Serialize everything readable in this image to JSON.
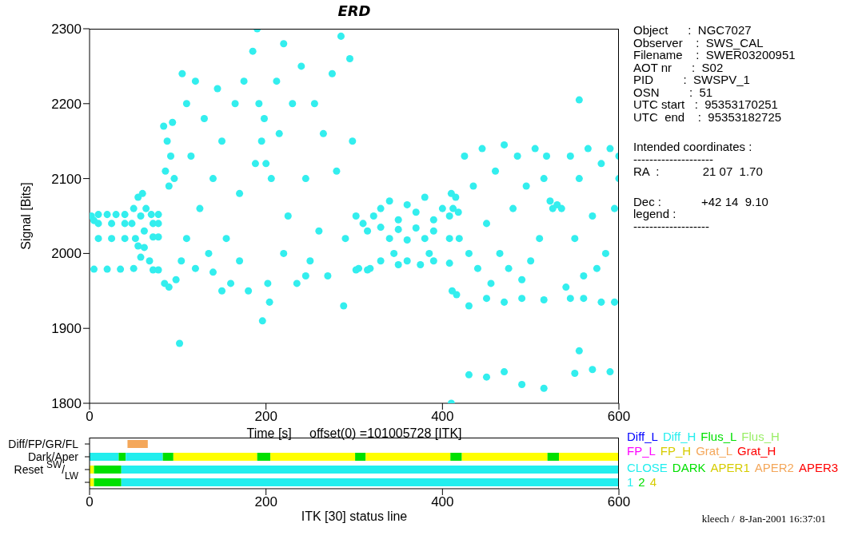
{
  "chart_data": [
    {
      "type": "scatter",
      "title": "ERD",
      "xlabel": "Time [s]     offset(0) =101005728 [ITK]",
      "ylabel": "Signal [Bits]",
      "xlim": [
        0,
        600
      ],
      "xticks": [
        0,
        200,
        400,
        600
      ],
      "ylim": [
        1800,
        2300
      ],
      "yticks": [
        1800,
        1900,
        2000,
        2100,
        2200,
        2300
      ],
      "marker": "circle",
      "grid": false,
      "annotations": [
        "Object      :  NGC7027",
        "Observer    :  SWS_CAL",
        "Filename    :  SWER03200951",
        "AOT nr      :  S02",
        "PID         :  SWSPV_1",
        "OSN         :  51",
        "UTC start   :  95353170251",
        "UTC  end    :  95353182725",
        "Intended coordinates :",
        "--------------------",
        "RA  :             21 07  1.70",
        "Dec :            +42 14  9.10",
        "legend :",
        "-------------------"
      ],
      "series": [
        {
          "color": "#33eeee",
          "x": [
            2,
            5,
            10,
            20,
            30,
            40,
            10,
            25,
            40,
            10,
            25,
            40,
            5,
            20,
            35,
            48,
            50,
            52,
            55,
            55,
            58,
            60,
            62,
            64,
            50,
            58,
            62,
            68,
            70,
            78,
            72,
            78,
            72,
            78,
            72,
            78,
            84,
            86,
            88,
            90,
            92,
            94,
            96,
            85,
            90,
            98,
            102,
            104,
            105,
            110,
            115,
            120,
            125,
            130,
            135,
            140,
            145,
            150,
            155,
            160,
            165,
            170,
            175,
            180,
            185,
            188,
            120,
            150,
            170,
            110,
            140,
            190,
            192,
            195,
            198,
            200,
            202,
            204,
            196,
            206,
            212,
            215,
            220,
            225,
            230,
            235,
            240,
            245,
            250,
            255,
            260,
            265,
            270,
            275,
            280,
            285,
            290,
            295,
            298,
            288,
            245,
            220,
            302,
            305,
            310,
            315,
            318,
            322,
            330,
            340,
            350,
            360,
            370,
            380,
            390,
            400,
            408,
            330,
            350,
            370,
            390,
            408,
            340,
            360,
            380,
            330,
            350,
            360,
            375,
            390,
            408,
            302,
            315,
            345,
            385,
            410,
            412,
            415,
            418,
            411,
            416,
            419,
            410,
            425,
            430,
            435,
            440,
            445,
            450,
            455,
            460,
            465,
            470,
            475,
            480,
            485,
            490,
            495,
            500,
            505,
            510,
            515,
            518,
            430,
            450,
            470,
            490,
            515,
            430,
            450,
            470,
            490,
            515,
            522,
            525,
            530,
            535,
            545,
            550,
            555,
            560,
            565,
            570,
            575,
            580,
            585,
            590,
            595,
            600,
            540,
            545,
            560,
            580,
            595,
            550,
            570,
            590,
            555,
            555,
            600
          ],
          "values": [
            2050,
            2044,
            2052,
            2052,
            2052,
            2052,
            2040,
            2040,
            2040,
            2020,
            2020,
            2020,
            1979,
            1979,
            1979,
            2040,
            2060,
            2020,
            2075,
            2010,
            2050,
            2080,
            2030,
            2060,
            1980,
            1995,
            2008,
            1990,
            2052,
            2052,
            2040,
            2040,
            2022,
            2022,
            1978,
            1978,
            2170,
            2110,
            2150,
            2090,
            2130,
            2175,
            2100,
            1960,
            1955,
            1965,
            1880,
            1990,
            2240,
            2200,
            2130,
            2230,
            2060,
            2180,
            2000,
            2100,
            2220,
            2150,
            2020,
            1960,
            2200,
            2080,
            2230,
            1950,
            2270,
            2120,
            1980,
            1950,
            1990,
            2020,
            1975,
            2300,
            2200,
            2150,
            2180,
            2120,
            1960,
            1935,
            1910,
            2100,
            2230,
            2160,
            2280,
            2050,
            2200,
            1960,
            2250,
            2100,
            1990,
            2200,
            2030,
            2160,
            1970,
            2240,
            2110,
            2290,
            2020,
            2260,
            2150,
            1930,
            1970,
            2000,
            2050,
            1980,
            2040,
            2030,
            1980,
            2050,
            2060,
            2070,
            2045,
            2065,
            2055,
            2075,
            2045,
            2060,
            2050,
            2035,
            2032,
            2034,
            2030,
            2020,
            2020,
            2018,
            2020,
            1990,
            1985,
            1990,
            1985,
            1990,
            1987,
            1978,
            1978,
            2000,
            2000,
            2080,
            2060,
            2075,
            2055,
            1950,
            1945,
            2020,
            1800,
            2130,
            2000,
            2090,
            1980,
            2140,
            2040,
            1960,
            2110,
            2000,
            2145,
            1980,
            2060,
            2130,
            1965,
            2090,
            1990,
            2140,
            2020,
            2100,
            2130,
            1930,
            1940,
            1935,
            1940,
            1938,
            1838,
            1835,
            1842,
            1825,
            1820,
            2070,
            2060,
            2065,
            2060,
            2130,
            2020,
            2100,
            1970,
            2140,
            2050,
            1980,
            2120,
            2000,
            2140,
            2060,
            2100,
            1955,
            1940,
            1940,
            1935,
            1935,
            1840,
            1845,
            1842,
            2205,
            1870,
            2130
          ]
        }
      ]
    },
    {
      "type": "bar",
      "orientation": "horizontal",
      "xlabel": "ITK [30] status line",
      "xlim": [
        0,
        600
      ],
      "xticks": [
        0,
        200,
        400,
        600
      ],
      "categories": [
        "Diff/FP/GR/FL",
        "Dark/Aper",
        "Reset $^{SW}$/$_{LW}$",
        null
      ],
      "annotations": [
        "kleech /  8-Jan-2001 16:37:01"
      ],
      "series": [
        {
          "base": [
            43,
            0,
            0,
            0
          ],
          "values": [
            23,
            33,
            5,
            5
          ],
          "colors": [
            "#f4a75a",
            "#22eeee",
            "#ffff00",
            "#ffff00"
          ]
        },
        {
          "base": [
            null,
            33,
            5,
            5
          ],
          "values": [
            null,
            8,
            31,
            31
          ],
          "colors": [
            null,
            "#00e000",
            "#00e000",
            "#00e000"
          ]
        },
        {
          "base": [
            null,
            41,
            36,
            36
          ],
          "values": [
            null,
            42,
            564,
            564
          ],
          "colors": [
            null,
            "#22eeee",
            "#22eeee",
            "#22eeee"
          ]
        },
        {
          "base": [
            null,
            83,
            null,
            null
          ],
          "values": [
            null,
            12,
            null,
            null
          ],
          "colors": [
            null,
            "#00e000",
            null,
            null
          ]
        },
        {
          "base": [
            null,
            95,
            null,
            null
          ],
          "values": [
            null,
            95,
            null,
            null
          ],
          "colors": [
            null,
            "#ffff00",
            null,
            null
          ]
        },
        {
          "base": [
            null,
            190,
            null,
            null
          ],
          "values": [
            null,
            15,
            null,
            null
          ],
          "colors": [
            null,
            "#00e000",
            null,
            null
          ]
        },
        {
          "base": [
            null,
            205,
            null,
            null
          ],
          "values": [
            null,
            96,
            null,
            null
          ],
          "colors": [
            null,
            "#ffff00",
            null,
            null
          ]
        },
        {
          "base": [
            null,
            301,
            null,
            null
          ],
          "values": [
            null,
            12,
            null,
            null
          ],
          "colors": [
            null,
            "#00e000",
            null,
            null
          ]
        },
        {
          "base": [
            null,
            313,
            null,
            null
          ],
          "values": [
            null,
            96,
            null,
            null
          ],
          "colors": [
            null,
            "#ffff00",
            null,
            null
          ]
        },
        {
          "base": [
            null,
            409,
            null,
            null
          ],
          "values": [
            null,
            13,
            null,
            null
          ],
          "colors": [
            null,
            "#00e000",
            null,
            null
          ]
        },
        {
          "base": [
            null,
            422,
            null,
            null
          ],
          "values": [
            null,
            97,
            null,
            null
          ],
          "colors": [
            null,
            "#ffff00",
            null,
            null
          ]
        },
        {
          "base": [
            null,
            519,
            null,
            null
          ],
          "values": [
            null,
            13,
            null,
            null
          ],
          "colors": [
            null,
            "#00e000",
            null,
            null
          ]
        },
        {
          "base": [
            null,
            532,
            null,
            null
          ],
          "values": [
            null,
            68,
            null,
            null
          ],
          "colors": [
            null,
            "#ffff00",
            null,
            null
          ]
        },
        {
          "name": "Diff_L",
          "color": "#0000ff",
          "values": [
            null,
            null,
            null,
            null
          ]
        },
        {
          "name": "Diff_H",
          "color": "#22eeee",
          "values": [
            null,
            null,
            null,
            null
          ]
        },
        {
          "name": "Flus_L",
          "color": "#00e000",
          "values": [
            null,
            null,
            null,
            null
          ]
        },
        {
          "name": "Flus_H",
          "color": "#99ee66",
          "values": [
            null,
            null,
            null,
            null
          ]
        },
        {
          "name": "FP_L",
          "color": "#ff00ff",
          "values": [
            null,
            null,
            null,
            null
          ]
        },
        {
          "name": "FP_H",
          "color": "#d6cc00",
          "values": [
            null,
            null,
            null,
            null
          ]
        },
        {
          "name": "Grat_L",
          "color": "#f4a75a",
          "values": [
            null,
            null,
            null,
            null
          ]
        },
        {
          "name": "Grat_H",
          "color": "#ff0000",
          "values": [
            null,
            null,
            null,
            null
          ]
        },
        {
          "name": "CLOSE",
          "color": "#22eeee",
          "values": [
            null,
            null,
            null,
            null
          ]
        },
        {
          "name": "DARK",
          "color": "#00e000",
          "values": [
            null,
            null,
            null,
            null
          ]
        },
        {
          "name": "APER1",
          "color": "#d6cc00",
          "values": [
            null,
            null,
            null,
            null
          ]
        },
        {
          "name": "APER2",
          "color": "#f4a75a",
          "values": [
            null,
            null,
            null,
            null
          ]
        },
        {
          "name": "APER3",
          "color": "#ff0000",
          "values": [
            null,
            null,
            null,
            null
          ]
        },
        {
          "name": "1",
          "color": "#22eeee",
          "values": [
            null,
            null,
            null,
            null
          ]
        },
        {
          "name": "2",
          "color": "#00e000",
          "values": [
            null,
            null,
            null,
            null
          ]
        },
        {
          "name": "4",
          "color": "#d6cc00",
          "values": [
            null,
            null,
            null,
            null
          ]
        }
      ]
    }
  ]
}
